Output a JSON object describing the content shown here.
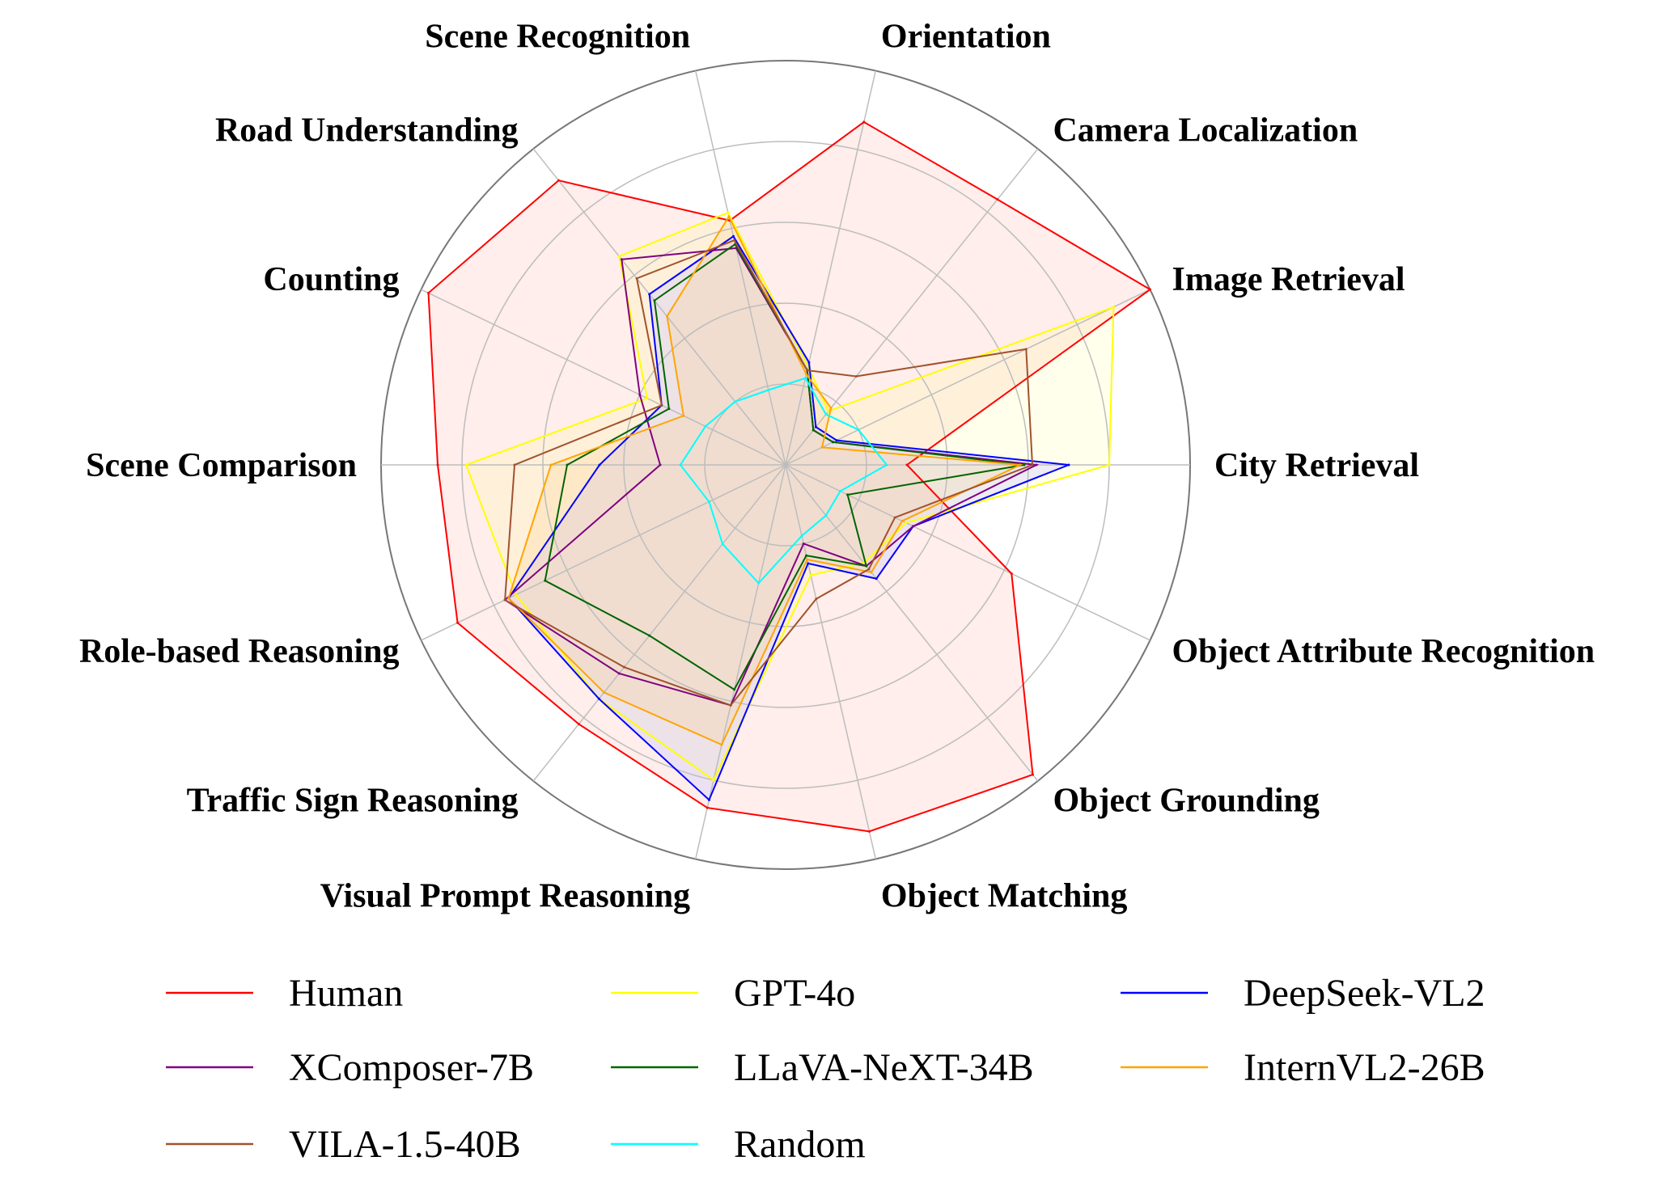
{
  "chart_data": {
    "type": "radar",
    "title": "",
    "grid": true,
    "rmax": 100,
    "gridRings": [
      20,
      40,
      60,
      80,
      100
    ],
    "legend_position": "bottom",
    "axes": [
      "City Retrieval",
      "Image Retrieval",
      "Camera Localization",
      "Orientation",
      "Scene Recognition",
      "Road Understanding",
      "Counting",
      "Scene Comparison",
      "Role-based Reasoning",
      "Traffic Sign Reasoning",
      "Visual Prompt Reasoning",
      "Object Matching",
      "Object Grounding",
      "Object Attribute Recognition"
    ],
    "series": [
      {
        "name": "Human",
        "color": "#ff0000",
        "fill": true,
        "fillColor": "#ffd9d2",
        "fillOpacity": 0.45,
        "values": [
          30,
          100,
          84,
          87,
          62,
          90,
          98,
          86,
          90,
          82,
          87,
          93,
          98,
          62
        ]
      },
      {
        "name": "GPT-4o",
        "color": "#ffff00",
        "fill": true,
        "fillColor": "#ffff66",
        "fillOpacity": 0.12,
        "values": [
          80,
          90,
          17,
          25,
          64,
          66,
          38,
          79,
          74,
          74,
          80,
          28,
          31,
          33
        ]
      },
      {
        "name": "DeepSeek-VL2",
        "color": "#0000ff",
        "fill": true,
        "fillColor": "#c8c8ff",
        "fillOpacity": 0.35,
        "values": [
          70,
          14,
          12,
          26,
          58,
          54,
          34,
          46,
          76,
          74,
          85,
          25,
          36,
          35
        ]
      },
      {
        "name": "XComposer-7B",
        "color": "#800080",
        "fill": false,
        "values": [
          62,
          13,
          11,
          24,
          55,
          65,
          40,
          31,
          77,
          66,
          61,
          20,
          32,
          35
        ]
      },
      {
        "name": "LLaVA-NeXT-34B",
        "color": "#006400",
        "fill": false,
        "values": [
          59,
          13,
          11,
          24,
          56,
          52,
          32,
          54,
          66,
          54,
          57,
          23,
          32,
          17
        ]
      },
      {
        "name": "InternVL2-26B",
        "color": "#ffa500",
        "fill": true,
        "fillColor": "#ffcc80",
        "fillOpacity": 0.22,
        "values": [
          58,
          10,
          18,
          23,
          63,
          47,
          28,
          58,
          76,
          72,
          71,
          24,
          34,
          32
        ]
      },
      {
        "name": "VILA-1.5-40B",
        "color": "#a0522d",
        "fill": false,
        "values": [
          61,
          66,
          28,
          24,
          57,
          59,
          34,
          67,
          77,
          64,
          61,
          34,
          33,
          30
        ]
      },
      {
        "name": "Random",
        "color": "#00ffff",
        "fill": false,
        "values": [
          25,
          20,
          16,
          22,
          19,
          20,
          22,
          26,
          21,
          25,
          30,
          18,
          16,
          15
        ]
      }
    ],
    "legend_order": [
      "Human",
      "GPT-4o",
      "DeepSeek-VL2",
      "XComposer-7B",
      "LLaVA-NeXT-34B",
      "InternVL2-26B",
      "VILA-1.5-40B",
      "Random"
    ]
  }
}
